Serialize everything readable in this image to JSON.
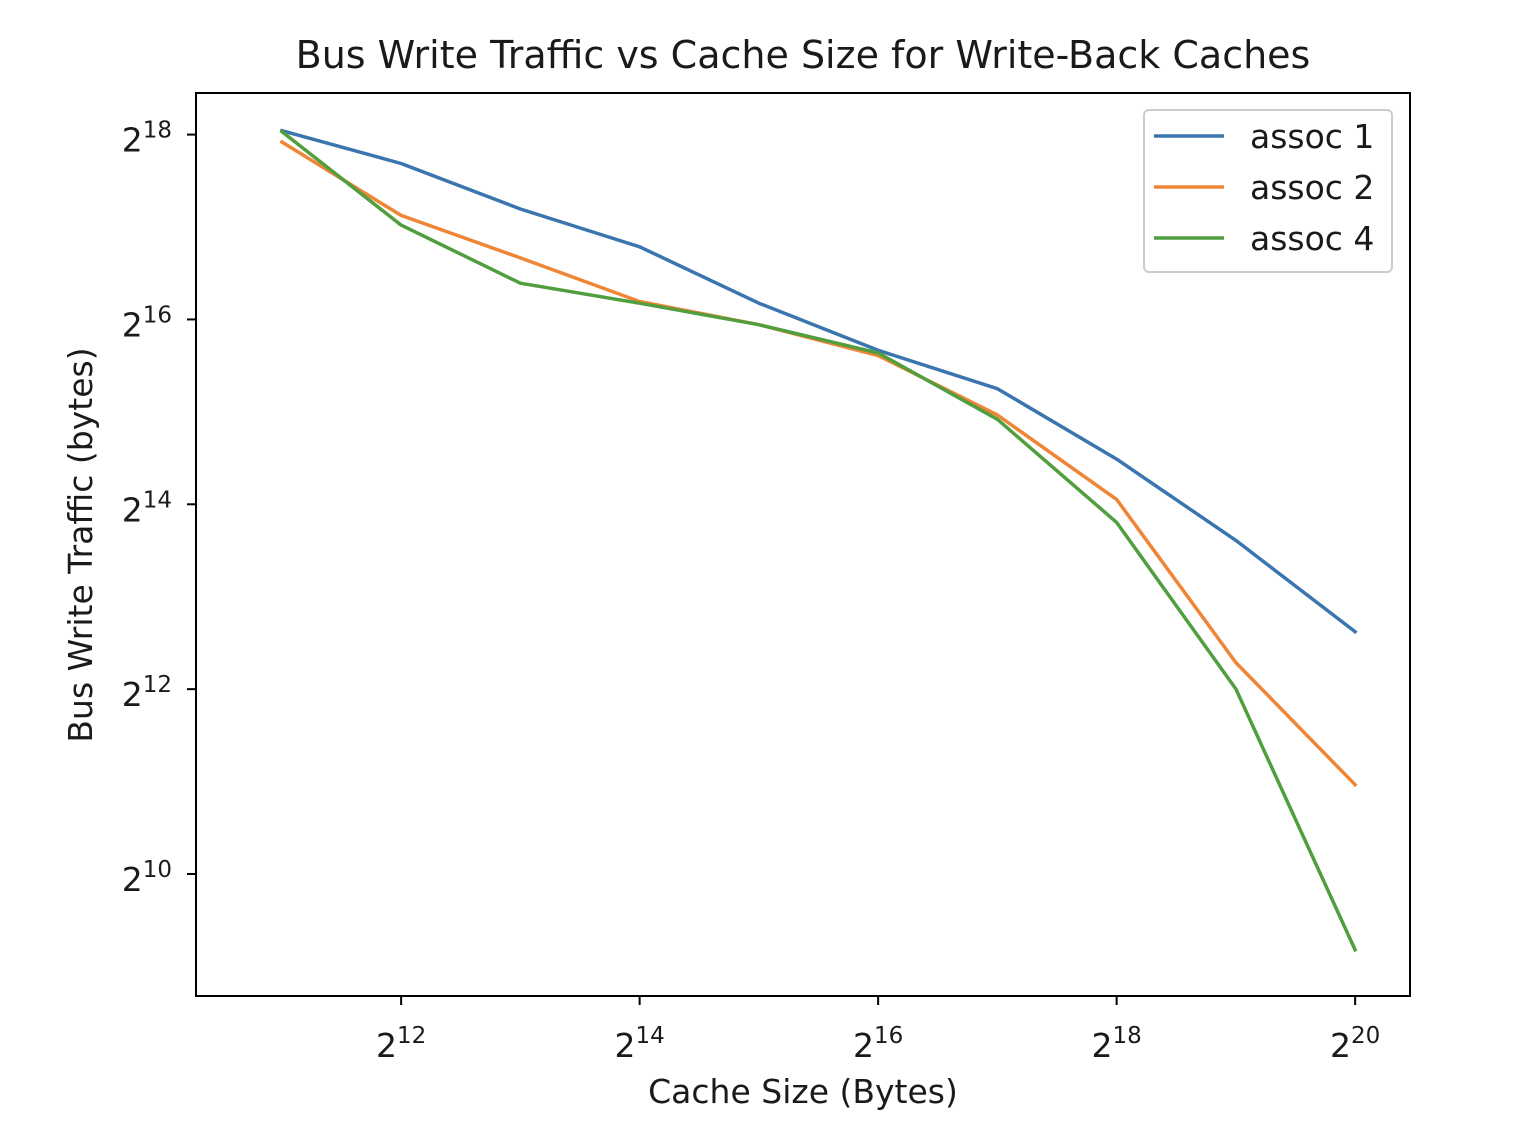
{
  "chart_data": {
    "type": "line",
    "title": "Bus Write Traffic vs Cache Size for Write-Back Caches",
    "xlabel": "Cache Size (Bytes)",
    "ylabel": "Bus Write Traffic (bytes)",
    "xscale": "log2",
    "yscale": "log2",
    "x_exponent_range": [
      10.28,
      20.46
    ],
    "y_exponent_range": [
      8.68,
      18.45
    ],
    "x_ticks": [
      {
        "base": "2",
        "exp": "12",
        "value": 4096
      },
      {
        "base": "2",
        "exp": "14",
        "value": 16384
      },
      {
        "base": "2",
        "exp": "16",
        "value": 65536
      },
      {
        "base": "2",
        "exp": "18",
        "value": 262144
      },
      {
        "base": "2",
        "exp": "20",
        "value": 1048576
      }
    ],
    "y_ticks": [
      {
        "base": "2",
        "exp": "10",
        "value": 1024
      },
      {
        "base": "2",
        "exp": "12",
        "value": 4096
      },
      {
        "base": "2",
        "exp": "14",
        "value": 16384
      },
      {
        "base": "2",
        "exp": "16",
        "value": 65536
      },
      {
        "base": "2",
        "exp": "18",
        "value": 262144
      }
    ],
    "grid": false,
    "legend_position": "top-right",
    "x": [
      2048,
      4096,
      8192,
      16384,
      32768,
      65536,
      131072,
      262144,
      524288,
      1048576
    ],
    "series": [
      {
        "name": "assoc 1",
        "color": "#3a75af",
        "values": [
          270000,
          211000,
          150000,
          113000,
          74000,
          52000,
          39000,
          23000,
          12500,
          6300
        ]
      },
      {
        "name": "assoc 2",
        "color": "#ef8636",
        "values": [
          248000,
          143000,
          104000,
          75000,
          63000,
          50000,
          32000,
          17000,
          5000,
          2000
        ]
      },
      {
        "name": "assoc 4",
        "color": "#519e3e",
        "values": [
          268000,
          133000,
          86000,
          74000,
          63000,
          51000,
          31000,
          14300,
          4100,
          580
        ]
      }
    ]
  }
}
